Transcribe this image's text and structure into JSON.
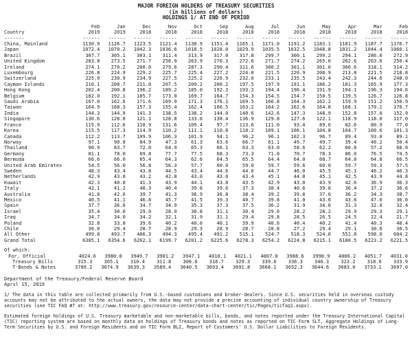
{
  "title": {
    "line1": "MAJOR FOREIGN HOLDERS OF TREASURY SECURITIES",
    "line2": "(in billions of dollars)",
    "line3": "HOLDINGS 1/ AT END OF PERIOD"
  },
  "table": {
    "country_header": "Country",
    "months": [
      "Feb",
      "Jan",
      "Dec",
      "Nov",
      "Oct",
      "Sep",
      "Aug",
      "Jul",
      "Jun",
      "May",
      "Apr",
      "Mar",
      "Feb"
    ],
    "years": [
      "2019",
      "2019",
      "2018",
      "2018",
      "2018",
      "2018",
      "2018",
      "2018",
      "2018",
      "2018",
      "2018",
      "2018",
      "2018"
    ],
    "rows": [
      {
        "country": "China, Mainland",
        "values": [
          "1130.9",
          "1126.7",
          "1123.5",
          "1121.4",
          "1138.9",
          "1151.4",
          "1165.1",
          "1171.0",
          "1191.2",
          "1183.1",
          "1181.9",
          "1187.7",
          "1176.7"
        ]
      },
      {
        "country": "Japan",
        "values": [
          "1072.4",
          "1070.2",
          "1042.3",
          "1036.6",
          "1018.5",
          "1028.0",
          "1029.9",
          "1035.5",
          "1032.5",
          "1048.8",
          "1031.2",
          "1044.4",
          "1060.1"
        ]
      },
      {
        "country": "Brazil",
        "values": [
          "307.7",
          "305.1",
          "303.1",
          "311.4",
          "313.9",
          "317.0",
          "317.8",
          "299.7",
          "300.1",
          "299.2",
          "294.1",
          "286.0",
          "272.9"
        ]
      },
      {
        "country": "United Kingdom",
        "values": [
          "283.8",
          "273.5",
          "271.7",
          "258.9",
          "263.9",
          "276.3",
          "272.6",
          "271.7",
          "274.2",
          "265.0",
          "262.6",
          "263.6",
          "250.4"
        ]
      },
      {
        "country": "Ireland",
        "values": [
          "274.1",
          "270.2",
          "280.0",
          "279.6",
          "287.3",
          "290.4",
          "311.6",
          "300.2",
          "301.1",
          "301.0",
          "300.6",
          "318.1",
          "314.2"
        ]
      },
      {
        "country": "Luxembourg",
        "values": [
          "226.8",
          "224.9",
          "229.2",
          "225.7",
          "225.4",
          "227.2",
          "224.0",
          "221.5",
          "220.9",
          "208.9",
          "213.8",
          "221.5",
          "218.8"
        ]
      },
      {
        "country": "Switzerland",
        "values": [
          "225.9",
          "230.9",
          "234.9",
          "227.5",
          "225.2",
          "226.9",
          "232.0",
          "233.1",
          "235.5",
          "243.4",
          "242.3",
          "244.6",
          "248.0"
        ]
      },
      {
        "country": "Cayman Islands",
        "values": [
          "210.1",
          "208.7",
          "211.0",
          "207.5",
          "209.2",
          "200.2",
          "197.5",
          "197.9",
          "191.1",
          "186.2",
          "181.3",
          "165.9",
          "177.3"
        ]
      },
      {
        "country": "Hong Kong",
        "values": [
          "202.4",
          "200.8",
          "196.2",
          "189.2",
          "185.0",
          "192.3",
          "193.2",
          "194.4",
          "196.4",
          "191.9",
          "194.1",
          "196.3",
          "194.6"
        ]
      },
      {
        "country": "Belgium",
        "values": [
          "182.0",
          "192.1",
          "185.7",
          "173.0",
          "169.7",
          "164.7",
          "154.3",
          "154.5",
          "154.7",
          "150.5",
          "139.5",
          "126.7",
          "126.8"
        ]
      },
      {
        "country": "Saudi Arabia",
        "values": [
          "167.0",
          "162.6",
          "171.6",
          "169.9",
          "171.3",
          "176.1",
          "169.5",
          "166.8",
          "164.3",
          "162.2",
          "159.9",
          "151.2",
          "150.9"
        ]
      },
      {
        "country": "Taiwan",
        "values": [
          "164.9",
          "168.3",
          "157.3",
          "155.4",
          "162.4",
          "166.5",
          "163.2",
          "164.2",
          "162.6",
          "164.8",
          "168.1",
          "170.1",
          "170.7"
        ]
      },
      {
        "country": "India",
        "values": [
          "144.3",
          "144.9",
          "141.3",
          "138.5",
          "138.2",
          "144.0",
          "140.6",
          "142.6",
          "147.3",
          "148.9",
          "152.8",
          "157.0",
          "152.9"
        ]
      },
      {
        "country": "Singapore",
        "values": [
          "130.6",
          "128.0",
          "121.1",
          "128.8",
          "133.0",
          "138.4",
          "136.9",
          "129.8",
          "127.6",
          "122.1",
          "118.9",
          "118.0",
          "117.0"
        ]
      },
      {
        "country": "France",
        "values": [
          "115.9",
          "112.6",
          "110.9",
          "131.6",
          "109.4",
          "97.7",
          "113.6",
          "111.0",
          "93.4",
          "89.6",
          "82.6",
          "80.9",
          "77.0"
        ]
      },
      {
        "country": "Korea",
        "values": [
          "115.5",
          "117.3",
          "114.9",
          "110.2",
          "111.1",
          "110.8",
          "110.2",
          "109.1",
          "106.1",
          "104.8",
          "104.7",
          "100.6",
          "101.3"
        ]
      },
      {
        "country": "Canada",
        "values": [
          "112.2",
          "113.7",
          "109.9",
          "106.3",
          "101.9",
          "94.1",
          "96.2",
          "96.1",
          "102.3",
          "96.7",
          "89.4",
          "93.0",
          "89.1"
        ]
      },
      {
        "country": "Norway",
        "values": [
          "97.1",
          "90.8",
          "84.9",
          "47.3",
          "61.3",
          "63.6",
          "66.7",
          "61.1",
          "49.7",
          "49.7",
          "39.4",
          "40.2",
          "50.4"
        ]
      },
      {
        "country": "Thailand",
        "values": [
          "90.9",
          "83.7",
          "72.0",
          "64.9",
          "65.3",
          "66.1",
          "63.3",
          "63.0",
          "58.6",
          "62.2",
          "60.8",
          "57.2",
          "68.0"
        ]
      },
      {
        "country": "Germany",
        "values": [
          "81.1",
          "78.0",
          "69.8",
          "77.7",
          "77.5",
          "68.3",
          "73.3",
          "71.0",
          "70.7",
          "78.3",
          "86.0",
          "76.5",
          "74.5"
        ]
      },
      {
        "country": "Bermuda",
        "values": [
          "66.6",
          "66.0",
          "65.4",
          "64.3",
          "62.6",
          "64.5",
          "65.5",
          "64.4",
          "64.0",
          "60.7",
          "64.0",
          "64.8",
          "66.5"
        ]
      },
      {
        "country": "United Arab Emirates",
        "values": [
          "54.5",
          "56.0",
          "56.8",
          "56.3",
          "57.7",
          "60.0",
          "59.0",
          "59.7",
          "59.6",
          "60.0",
          "59.7",
          "59.3",
          "57.5"
        ]
      },
      {
        "country": "Sweden",
        "values": [
          "48.3",
          "43.4",
          "43.8",
          "44.5",
          "43.4",
          "44.6",
          "44.6",
          "44.7",
          "46.0",
          "45.5",
          "45.1",
          "46.2",
          "46.3"
        ]
      },
      {
        "country": "Netherlands",
        "values": [
          "42.9",
          "43.0",
          "43.2",
          "42.8",
          "43.0",
          "43.0",
          "43.4",
          "45.1",
          "44.8",
          "45.1",
          "42.5",
          "43.9",
          "44.8"
        ]
      },
      {
        "country": "Kuwait",
        "values": [
          "42.3",
          "40.8",
          "41.3",
          "43.9",
          "44.1",
          "43.8",
          "43.5",
          "42.9",
          "43.0",
          "43.9",
          "42.6",
          "36.9",
          "36.3"
        ]
      },
      {
        "country": "Italy",
        "values": [
          "42.1",
          "41.2",
          "40.3",
          "40.4",
          "39.6",
          "39.6",
          "37.3",
          "38.4",
          "40.6",
          "39.6",
          "36.4",
          "37.2",
          "36.6"
        ]
      },
      {
        "country": "Australia",
        "values": [
          "41.8",
          "42.6",
          "39.7",
          "41.3",
          "36.9",
          "36.8",
          "38.4",
          "39.2",
          "39.8",
          "37.6",
          "36.2",
          "34.3",
          "38.7"
        ]
      },
      {
        "country": "Mexico",
        "values": [
          "40.5",
          "41.1",
          "46.8",
          "45.7",
          "41.5",
          "39.3",
          "40.7",
          "39.8",
          "41.0",
          "43.6",
          "43.8",
          "47.0",
          "36.0"
        ]
      },
      {
        "country": "Spain",
        "values": [
          "37.7",
          "36.6",
          "34.7",
          "34.9",
          "35.3",
          "37.3",
          "37.5",
          "36.2",
          "31.9",
          "34.6",
          "31.3",
          "32.0",
          "32.4"
        ]
      },
      {
        "country": "Israel",
        "values": [
          "35.4",
          "30.0",
          "29.0",
          "28.9",
          "30.8",
          "31.1",
          "30.4",
          "29.6",
          "28.2",
          "28.2",
          "29.9",
          "29.3",
          "29.1"
        ]
      },
      {
        "country": "Iraq",
        "values": [
          "34.7",
          "34.0",
          "34.2",
          "32.1",
          "31.9",
          "31.1",
          "29.4",
          "29.8",
          "28.5",
          "26.5",
          "24.5",
          "22.4",
          "21.7"
        ]
      },
      {
        "country": "Poland",
        "values": [
          "32.8",
          "33.8",
          "39.6",
          "40.2",
          "40.0",
          "40.1",
          "39.9",
          "40.6",
          "40.4",
          "40.2",
          "41.4",
          "40.3",
          "40.4"
        ]
      },
      {
        "country": "Chile",
        "values": [
          "30.0",
          "29.4",
          "28.7",
          "28.9",
          "29.3",
          "28.9",
          "28.7",
          "28.8",
          "27.2",
          "29.4",
          "29.1",
          "30.6",
          "30.5"
        ]
      },
      {
        "country": "All Other",
        "values": [
          "499.8",
          "493.7",
          "486.3",
          "494.3",
          "495.4",
          "491.2",
          "515.1",
          "524.7",
          "518.3",
          "524.0",
          "551.8",
          "598.0",
          "604.2"
        ]
      }
    ],
    "grand_total": {
      "country": "Grand Total",
      "values": [
        "6385.1",
        "6354.6",
        "6262.1",
        "6199.7",
        "6201.2",
        "6225.6",
        "6278.3",
        "6254.2",
        "6224.8",
        "6215.1",
        "6180.5",
        "6223.2",
        "6221.5"
      ]
    },
    "of_which_label": "Of which:",
    "of_which_rows": [
      {
        "country": "For. Official",
        "values": [
          "4024.6",
          "3980.0",
          "3949.7",
          "3901.2",
          "3947.1",
          "4010.1",
          "4021.1",
          "4007.8",
          "3988.6",
          "3990.9",
          "4006.2",
          "4051.7",
          "4031.0"
        ]
      },
      {
        "country": "Treasury Bills",
        "values": [
          "315.3",
          "305.1",
          "310.4",
          "311.8",
          "306.6",
          "316.7",
          "329.3",
          "339.6",
          "336.3",
          "346.3",
          "323.2",
          "318.6",
          "333.9"
        ]
      },
      {
        "country": "T-Bonds & Notes",
        "values": [
          "3709.2",
          "3674.9",
          "3639.3",
          "3589.4",
          "3640.5",
          "3693.4",
          "3691.8",
          "3668.1",
          "3652.3",
          "3644.6",
          "3683.0",
          "3733.1",
          "3697.0"
        ]
      }
    ]
  },
  "footer": {
    "agency": "Department of the Treasury/Federal Reserve Board",
    "date": "April 15, 2019",
    "footnote1": "1/  The data in this table are collected primarily from U.S.-based custodians and broker-dealers.  Since U.S. securities held in overseas custody accounts may not be attributed to the actual owners, the data may not provide a precise accounting of individual country ownership of Treasury securities (see TIC FAQ #7 at: http://www.treasury.gov/resource-center/data-chart-center/tic/Pages/ticfaq1.aspx).",
    "footnote2": "Estimated foreign holdings of U.S. Treasury marketable and non-marketable bills, bonds, and notes reported under the Treasury International Capital (TIC) reporting system are based on monthly data on holdings of Treasury bonds and notes as reported on TIC Form SLT, Aggregate Holdings of Long-Term Securities by U.S. and Foreign Residents and on TIC Form BL2, Report of Customers' U.S. Dollar Liabilities to Foreign Residents."
  }
}
